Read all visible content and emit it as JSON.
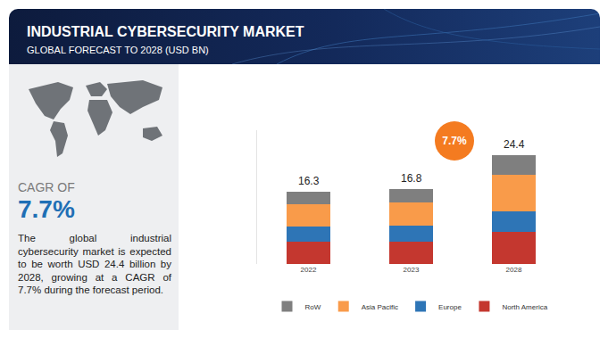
{
  "header": {
    "title": "INDUSTRIAL CYBERSECURITY MARKET",
    "subtitle": "GLOBAL FORECAST TO 2028 (USD BN)"
  },
  "sidebar": {
    "cagr_label": "CAGR OF",
    "cagr_value": "7.7%",
    "description": "The global industrial cybersecurity market is expected to be worth USD 24.4 billion by 2028, growing at a CAGR of 7.7% during the forecast period."
  },
  "chart_data": {
    "type": "bar",
    "stacked": true,
    "categories": [
      "2022",
      "2023",
      "2028"
    ],
    "series": [
      {
        "name": "North America",
        "color": "#c4372f",
        "values": [
          5.1,
          5.1,
          7.2
        ]
      },
      {
        "name": "Europe",
        "color": "#2e75b6",
        "values": [
          3.4,
          3.5,
          4.6
        ]
      },
      {
        "name": "Asia Pacific",
        "color": "#f99b4a",
        "values": [
          5.0,
          5.3,
          8.2
        ]
      },
      {
        "name": "RoW",
        "color": "#7f7f7f",
        "values": [
          2.8,
          2.9,
          4.4
        ]
      }
    ],
    "totals": [
      16.3,
      16.8,
      24.4
    ],
    "annotations": [
      {
        "text": "7.7%"
      }
    ],
    "ylim": [
      0,
      30
    ],
    "tick_labels": "x",
    "grid": false,
    "legend": "bottom"
  }
}
